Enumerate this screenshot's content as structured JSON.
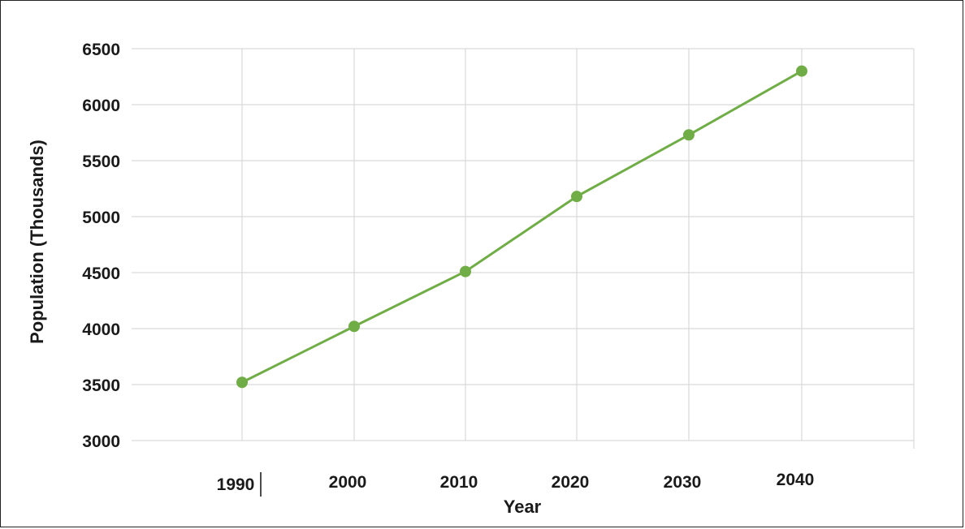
{
  "chart_data": {
    "type": "line",
    "title": "",
    "xlabel": "Year",
    "ylabel": "Population  (Thousands)",
    "x": [
      "1990",
      "2000",
      "2010",
      "2020",
      "2030",
      "2040"
    ],
    "series": [
      {
        "values": [
          3520,
          4020,
          4510,
          5180,
          5730,
          6300
        ],
        "color": "#70ad47"
      }
    ],
    "ylim": [
      3000,
      6500
    ],
    "yticks": [
      "3000",
      "3500",
      "4000",
      "4500",
      "5000",
      "5500",
      "6000",
      "6500"
    ],
    "grid": true,
    "legend": "none",
    "gridColor": "#d9d9d9"
  }
}
